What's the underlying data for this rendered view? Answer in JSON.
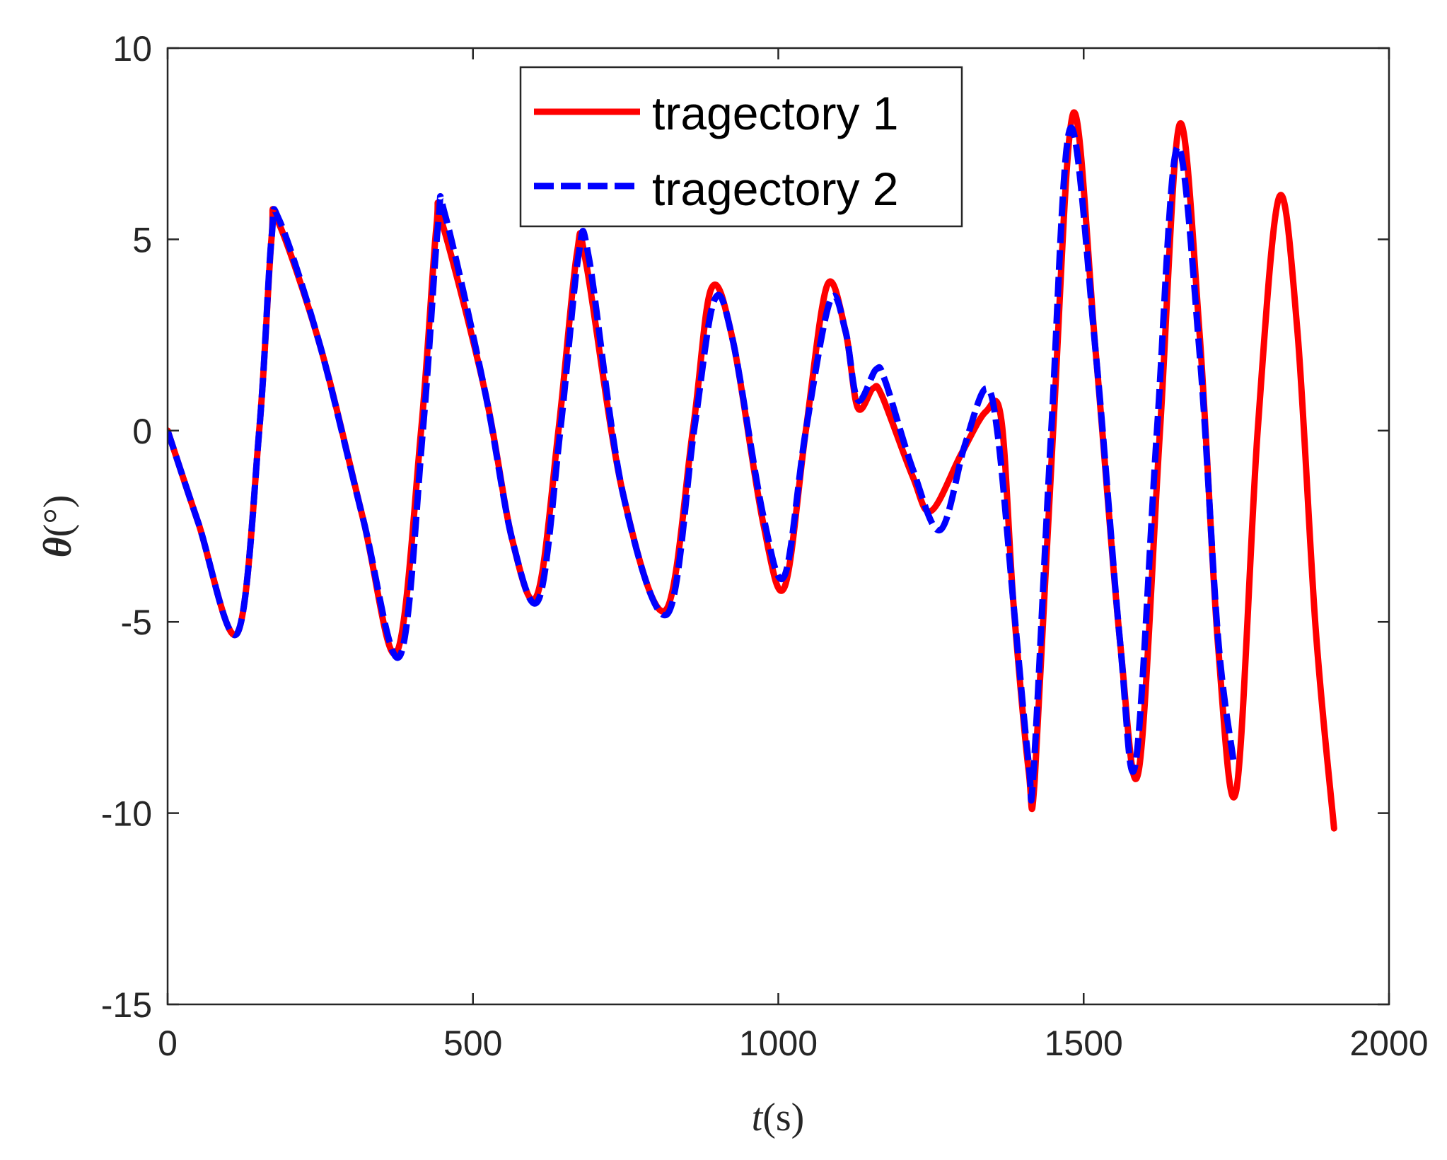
{
  "chart_data": {
    "type": "line",
    "xlabel_var": "t",
    "xlabel_unit": "(s)",
    "ylabel_var": "θ",
    "ylabel_unit": "(°)",
    "xlim": [
      0,
      2000
    ],
    "ylim": [
      -15,
      10
    ],
    "xticks": [
      0,
      500,
      1000,
      1500,
      2000
    ],
    "xtick_labels": [
      "0",
      "500",
      "1000",
      "1500",
      "2000"
    ],
    "yticks": [
      -15,
      -10,
      -5,
      0,
      5,
      10
    ],
    "ytick_labels": [
      "-15",
      "-10",
      "-5",
      "0",
      "5",
      "10"
    ],
    "grid": false,
    "legend_position": "top-center",
    "series": [
      {
        "name": "tragectory 1",
        "color": "#ff0000",
        "style": "solid",
        "points": [
          [
            0,
            0
          ],
          [
            50,
            -2.4
          ],
          [
            114,
            -5.3
          ],
          [
            150,
            0
          ],
          [
            170,
            5
          ],
          [
            180,
            5.5
          ],
          [
            250,
            2.2
          ],
          [
            320,
            -2.3
          ],
          [
            375,
            -5.8
          ],
          [
            415,
            0
          ],
          [
            440,
            5.3
          ],
          [
            450,
            5.4
          ],
          [
            520,
            1.0
          ],
          [
            565,
            -2.9
          ],
          [
            605,
            -4.3
          ],
          [
            640,
            0
          ],
          [
            670,
            4.6
          ],
          [
            685,
            4.4
          ],
          [
            745,
            -1.6
          ],
          [
            815,
            -4.7
          ],
          [
            860,
            0
          ],
          [
            890,
            3.7
          ],
          [
            925,
            2.4
          ],
          [
            975,
            -2.4
          ],
          [
            1010,
            -4.1
          ],
          [
            1045,
            0
          ],
          [
            1080,
            3.8
          ],
          [
            1110,
            2.6
          ],
          [
            1130,
            0.6
          ],
          [
            1155,
            1.1
          ],
          [
            1170,
            0.9
          ],
          [
            1220,
            -1.2
          ],
          [
            1250,
            -2.1
          ],
          [
            1300,
            -0.6
          ],
          [
            1340,
            0.5
          ],
          [
            1365,
            0.3
          ],
          [
            1385,
            -4.5
          ],
          [
            1410,
            -8.9
          ],
          [
            1420,
            -9.1
          ],
          [
            1450,
            0
          ],
          [
            1483,
            8.3
          ],
          [
            1520,
            2.0
          ],
          [
            1560,
            -5.6
          ],
          [
            1590,
            -8.9
          ],
          [
            1625,
            0
          ],
          [
            1657,
            8.0
          ],
          [
            1690,
            2.5
          ],
          [
            1720,
            -5.6
          ],
          [
            1750,
            -9.4
          ],
          [
            1785,
            0
          ],
          [
            1820,
            6.1
          ],
          [
            1850,
            2.6
          ],
          [
            1880,
            -5.2
          ],
          [
            1910,
            -10.4
          ]
        ]
      },
      {
        "name": "tragectory 2",
        "color": "#0000ff",
        "style": "dashed",
        "points": [
          [
            0,
            0
          ],
          [
            50,
            -2.4
          ],
          [
            114,
            -5.3
          ],
          [
            150,
            0
          ],
          [
            170,
            5
          ],
          [
            183,
            5.5
          ],
          [
            250,
            2.2
          ],
          [
            320,
            -2.3
          ],
          [
            380,
            -5.9
          ],
          [
            418,
            0
          ],
          [
            443,
            5.4
          ],
          [
            455,
            5.6
          ],
          [
            520,
            1.0
          ],
          [
            565,
            -2.9
          ],
          [
            608,
            -4.4
          ],
          [
            643,
            0
          ],
          [
            673,
            4.6
          ],
          [
            690,
            4.5
          ],
          [
            745,
            -1.6
          ],
          [
            818,
            -4.8
          ],
          [
            862,
            0
          ],
          [
            895,
            3.4
          ],
          [
            925,
            2.4
          ],
          [
            975,
            -2.2
          ],
          [
            1010,
            -3.8
          ],
          [
            1045,
            0
          ],
          [
            1085,
            3.4
          ],
          [
            1110,
            2.6
          ],
          [
            1130,
            0.8
          ],
          [
            1160,
            1.6
          ],
          [
            1175,
            1.3
          ],
          [
            1220,
            -1.0
          ],
          [
            1265,
            -2.6
          ],
          [
            1305,
            -0.4
          ],
          [
            1340,
            1.1
          ],
          [
            1360,
            -0.2
          ],
          [
            1385,
            -4.5
          ],
          [
            1410,
            -8.7
          ],
          [
            1418,
            -8.9
          ],
          [
            1447,
            0
          ],
          [
            1478,
            7.9
          ],
          [
            1520,
            2.0
          ],
          [
            1560,
            -5.6
          ],
          [
            1585,
            -8.7
          ],
          [
            1620,
            0
          ],
          [
            1653,
            7.4
          ],
          [
            1690,
            2.0
          ],
          [
            1720,
            -5.4
          ],
          [
            1745,
            -8.6
          ]
        ]
      }
    ]
  }
}
